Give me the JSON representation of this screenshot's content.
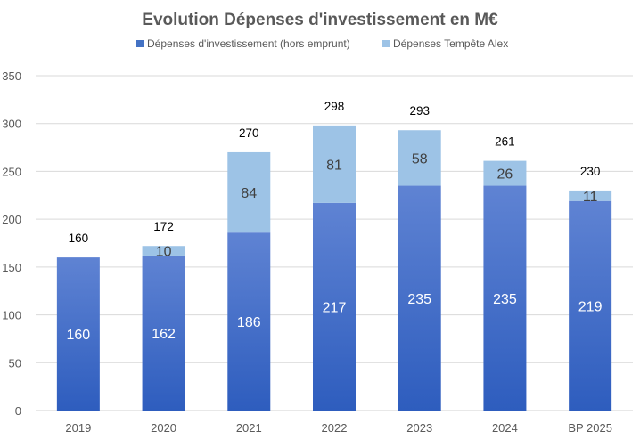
{
  "chart_data": {
    "type": "bar",
    "stacked": true,
    "title": "Evolution Dépenses d'investissement en M€",
    "xlabel": "",
    "ylabel": "",
    "ylim": [
      0,
      350
    ],
    "yticks": [
      "0",
      "50",
      "100",
      "150",
      "200",
      "250",
      "300",
      "350"
    ],
    "categories": [
      "2019",
      "2020",
      "2021",
      "2022",
      "2023",
      "2024",
      "BP 2025"
    ],
    "series": [
      {
        "name": "Dépenses d'investissement (hors emprunt)",
        "color": "#4472c4",
        "values": [
          160,
          162,
          186,
          217,
          235,
          235,
          219
        ]
      },
      {
        "name": "Dépenses Tempête Alex",
        "color": "#9dc3e6",
        "values": [
          null,
          10,
          84,
          81,
          58,
          26,
          11
        ]
      }
    ],
    "totals": [
      160,
      172,
      270,
      298,
      293,
      261,
      230
    ],
    "grid": true,
    "legend_position": "top"
  }
}
